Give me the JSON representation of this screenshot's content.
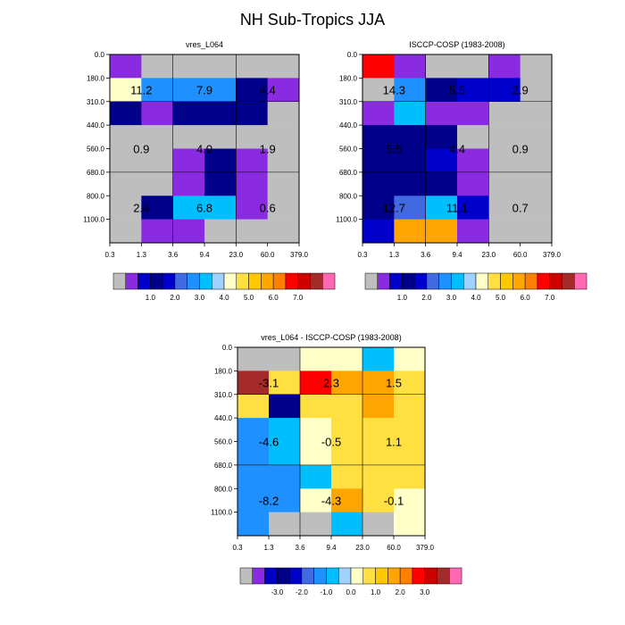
{
  "title": "NH Sub-Tropics JJA",
  "chart_data": [
    {
      "type": "heatmap",
      "title": "vres_L064",
      "x_tick_labels": [
        "0.3",
        "1.3",
        "3.6",
        "9.4",
        "23.0",
        "60.0",
        "379.0"
      ],
      "y_tick_labels": [
        "0.0",
        "180.0",
        "310.0",
        "440.0",
        "560.0",
        "680.0",
        "800.0",
        "1100.0"
      ],
      "grid_values": [
        [
          1.0,
          0.2,
          0.2,
          0.2,
          0.2,
          0.2
        ],
        [
          4.0,
          2.5,
          2.5,
          2.5,
          1.5,
          0.8
        ],
        [
          1.4,
          0.8,
          1.4,
          1.4,
          1.4,
          0.2
        ],
        [
          0.2,
          0.2,
          0.2,
          0.2,
          0.2,
          0.2
        ],
        [
          0.2,
          0.2,
          0.8,
          1.4,
          0.8,
          0.2
        ],
        [
          0.2,
          0.2,
          0.8,
          1.4,
          0.8,
          0.2
        ],
        [
          0.2,
          1.4,
          3.0,
          3.0,
          0.8,
          0.2
        ],
        [
          0.2,
          0.8,
          0.8,
          0.2,
          0.2,
          0.2
        ]
      ],
      "box_totals": [
        [
          "11.2",
          "7.9",
          "4.4"
        ],
        [
          "0.9",
          "4.0",
          "1.9"
        ],
        [
          "2.4",
          "6.8",
          "0.6"
        ]
      ],
      "colorbar": {
        "labels": [
          "1.0",
          "2.0",
          "3.0",
          "4.0",
          "5.0",
          "6.0",
          "7.0"
        ],
        "colors": [
          "#bebebe",
          "#8a2be2",
          "#0000c8",
          "#00008b",
          "#0000cd",
          "#4169e1",
          "#1e90ff",
          "#00bfff",
          "#a0d2ff",
          "#ffffc8",
          "#ffe040",
          "#ffc800",
          "#ffa500",
          "#ff7f00",
          "#ff0000",
          "#cd0000",
          "#a52a2a",
          "#ff69b4"
        ]
      }
    },
    {
      "type": "heatmap",
      "title": "ISCCP-COSP (1983-2008)",
      "x_tick_labels": [
        "0.3",
        "1.3",
        "3.6",
        "9.4",
        "23.0",
        "60.0",
        "379.0"
      ],
      "y_tick_labels": [
        "0.0",
        "180.0",
        "310.0",
        "440.0",
        "560.0",
        "680.0",
        "800.0",
        "1100.0"
      ],
      "grid_values": [
        [
          6.0,
          0.8,
          0.2,
          0.2,
          0.8,
          0.2
        ],
        [
          0.2,
          2.5,
          1.4,
          1.8,
          1.8,
          0.2
        ],
        [
          0.8,
          3.0,
          0.8,
          0.8,
          0.2,
          0.2
        ],
        [
          1.4,
          1.4,
          1.4,
          0.2,
          0.2,
          0.2
        ],
        [
          1.4,
          1.4,
          1.8,
          0.8,
          0.2,
          0.2
        ],
        [
          1.4,
          1.4,
          1.4,
          0.8,
          0.2,
          0.2
        ],
        [
          1.4,
          2.0,
          3.0,
          1.8,
          0.2,
          0.2
        ],
        [
          1.8,
          5.0,
          5.0,
          0.8,
          0.2,
          0.2
        ]
      ],
      "box_totals": [
        [
          "14.3",
          "5.5",
          "2.9"
        ],
        [
          "5.5",
          "4.4",
          "0.9"
        ],
        [
          "12.7",
          "11.1",
          "0.7"
        ]
      ],
      "colorbar": {
        "labels": [
          "1.0",
          "2.0",
          "3.0",
          "4.0",
          "5.0",
          "6.0",
          "7.0"
        ],
        "colors": [
          "#bebebe",
          "#8a2be2",
          "#0000c8",
          "#00008b",
          "#0000cd",
          "#4169e1",
          "#1e90ff",
          "#00bfff",
          "#a0d2ff",
          "#ffffc8",
          "#ffe040",
          "#ffc800",
          "#ffa500",
          "#ff7f00",
          "#ff0000",
          "#cd0000",
          "#a52a2a",
          "#ff69b4"
        ]
      }
    },
    {
      "type": "heatmap",
      "title": "vres_L064 - ISCCP-COSP (1983-2008)",
      "x_tick_labels": [
        "0.3",
        "1.3",
        "3.6",
        "9.4",
        "23.0",
        "60.0",
        "379.0"
      ],
      "y_tick_labels": [
        "0.0",
        "180.0",
        "310.0",
        "440.0",
        "560.0",
        "680.0",
        "800.0",
        "1100.0"
      ],
      "grid_values": [
        [
          0.0,
          0.0,
          -0.25,
          -0.25,
          -1.25,
          -0.25
        ],
        [
          3.5,
          0.25,
          2.5,
          1.5,
          1.5,
          0.25
        ],
        [
          0.25,
          -3.0,
          0.25,
          0.25,
          1.5,
          0.25
        ],
        [
          -1.5,
          -1.25,
          -0.25,
          0.25,
          0.25,
          0.25
        ],
        [
          -1.5,
          -1.25,
          -0.25,
          0.25,
          0.25,
          0.25
        ],
        [
          -1.5,
          -1.5,
          -1.25,
          0.25,
          0.25,
          0.25
        ],
        [
          -1.5,
          -1.5,
          -0.25,
          1.5,
          0.25,
          -0.25
        ],
        [
          -1.5,
          0.0,
          0.0,
          -1.25,
          0.0,
          -0.25
        ]
      ],
      "box_totals": [
        [
          "-3.1",
          "2.3",
          "1.5"
        ],
        [
          "-4.6",
          "-0.5",
          "1.1"
        ],
        [
          "-8.2",
          "-4.3",
          "-0.1"
        ]
      ],
      "colorbar": {
        "labels": [
          "-3.0",
          "-2.0",
          "-1.0",
          "0.0",
          "1.0",
          "2.0",
          "3.0"
        ],
        "colors": [
          "#bebebe",
          "#8a2be2",
          "#0000c8",
          "#00008b",
          "#0000cd",
          "#4169e1",
          "#1e90ff",
          "#00bfff",
          "#a0d2ff",
          "#ffffc8",
          "#ffe040",
          "#ffc800",
          "#ffa500",
          "#ff7f00",
          "#ff0000",
          "#cd0000",
          "#a52a2a",
          "#ff69b4"
        ]
      }
    }
  ]
}
